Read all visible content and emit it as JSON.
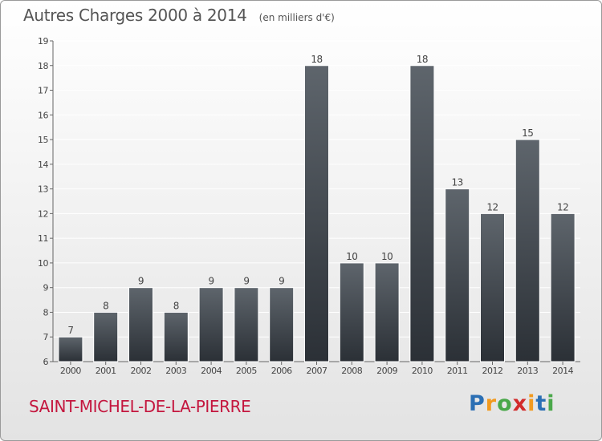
{
  "title": "Autres Charges 2000 à 2014",
  "subtitle": "(en milliers d'€)",
  "commune": "SAINT-MICHEL-DE-LA-PIERRE",
  "logo": {
    "text": "Proxiti",
    "letters": [
      {
        "ch": "P",
        "color": "#2b6fb4"
      },
      {
        "ch": "r",
        "color": "#f29a1e"
      },
      {
        "ch": "o",
        "color": "#4aa84a"
      },
      {
        "ch": "x",
        "color": "#d22b2b"
      },
      {
        "ch": "i",
        "color": "#f29a1e"
      },
      {
        "ch": "t",
        "color": "#2b6fb4"
      },
      {
        "ch": "i",
        "color": "#4aa84a"
      }
    ]
  },
  "colors": {
    "bar_top": "#5e656c",
    "bar_bottom": "#2b3036",
    "axis_text": "#444444",
    "grid": "#ffffff"
  },
  "chart_data": {
    "type": "bar",
    "categories": [
      "2000",
      "2001",
      "2002",
      "2003",
      "2004",
      "2005",
      "2006",
      "2007",
      "2008",
      "2009",
      "2010",
      "2011",
      "2012",
      "2013",
      "2014"
    ],
    "values": [
      7,
      8,
      9,
      8,
      9,
      9,
      9,
      18,
      10,
      10,
      18,
      13,
      12,
      15,
      12
    ],
    "ylim": [
      6,
      19
    ],
    "yticks": [
      6,
      7,
      8,
      9,
      10,
      11,
      12,
      13,
      14,
      15,
      16,
      17,
      18,
      19
    ],
    "grid": true
  }
}
